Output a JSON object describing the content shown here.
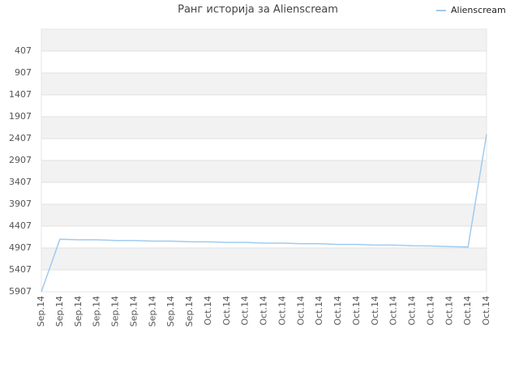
{
  "chart_data": {
    "type": "line",
    "title": "Ранг историја за Alienscream",
    "categories": [
      "Sep.14",
      "Sep.14",
      "Sep.14",
      "Sep.14",
      "Sep.14",
      "Sep.14",
      "Sep.14",
      "Sep.14",
      "Sep.14",
      "Oct.14",
      "Oct.14",
      "Oct.14",
      "Oct.14",
      "Oct.14",
      "Oct.14",
      "Oct.14",
      "Oct.14",
      "Oct.14",
      "Oct.14",
      "Oct.14",
      "Oct.14",
      "Oct.14",
      "Oct.14",
      "Oct.14",
      "Oct.14"
    ],
    "series": [
      {
        "name": "Alienscream",
        "color": "#a0cbf0",
        "values": [
          5907,
          4707,
          4720,
          4720,
          4735,
          4735,
          4750,
          4750,
          4765,
          4765,
          4780,
          4780,
          4795,
          4795,
          4810,
          4810,
          4825,
          4825,
          4840,
          4840,
          4855,
          4860,
          4875,
          4885,
          2310
        ]
      }
    ],
    "ylim": [
      5907,
      -93
    ],
    "yticks": [
      407,
      907,
      1407,
      1907,
      2407,
      2907,
      3407,
      3907,
      4407,
      4907,
      5407,
      5907
    ],
    "grid": true,
    "bands": "#f2f2f2",
    "legend": "top-right"
  }
}
